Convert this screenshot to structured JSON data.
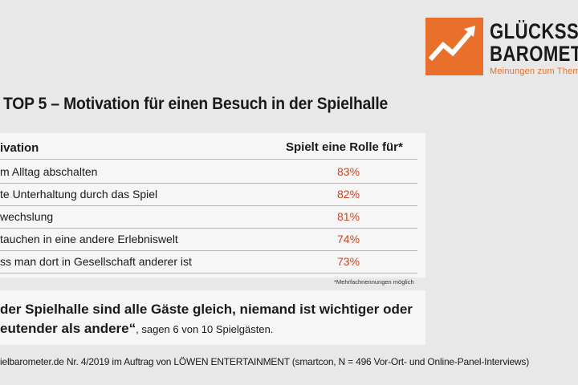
{
  "logo": {
    "line1": "GLÜCKSSP",
    "line2": "BAROMET",
    "subtitle": "Meinungen zum Thema G",
    "accent_color": "#e8702a"
  },
  "title": "TOP 5 – Motivation für einen Besuch in der Spielhalle",
  "table": {
    "header_label": "ivation",
    "header_value": "Spielt eine Rolle für*",
    "rows": [
      {
        "label": "m Alltag abschalten",
        "value": "83%"
      },
      {
        "label": "te Unterhaltung durch das Spiel",
        "value": "82%"
      },
      {
        "label": "wechslung",
        "value": "81%"
      },
      {
        "label": "tauchen in eine andere Erlebniswelt",
        "value": "74%"
      },
      {
        "label": "ss man dort in Gesellschaft anderer ist",
        "value": "73%"
      }
    ],
    "footnote": "*Mehrfachnennungen möglich",
    "value_color": "#d2401e"
  },
  "quote": {
    "line1": "der Spielhalle sind alle Gäste gleich, niemand ist wichtiger oder",
    "line2_bold": "eutender als andere“",
    "line2_normal": ", sagen 6 von 10 Spielgästen."
  },
  "source": "ielbarometer.de Nr. 4/2019 im Auftrag von LÖWEN ENTERTAINMENT (smartcon, N = 496 Vor-Ort- und Online-Panel-Interviews)"
}
